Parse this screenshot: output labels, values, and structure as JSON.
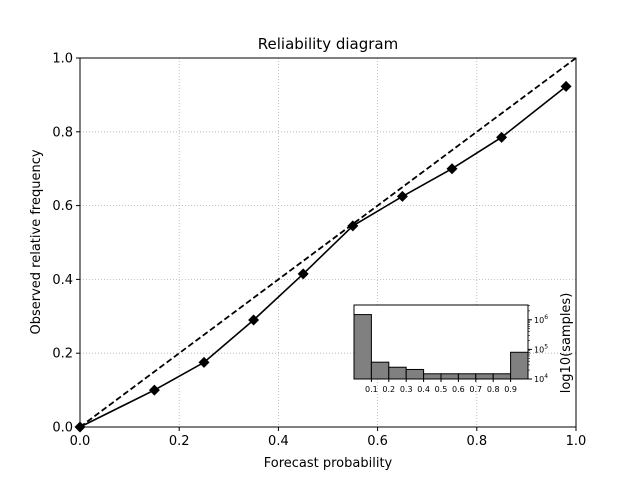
{
  "chart_data": [
    {
      "type": "line",
      "title": "Reliability diagram",
      "xlabel": "Forecast probability",
      "ylabel": "Observed relative frequency",
      "xlim": [
        0,
        1
      ],
      "ylim": [
        0,
        1
      ],
      "x_ticks": [
        "0.0",
        "0.2",
        "0.4",
        "0.6",
        "0.8",
        "1.0"
      ],
      "y_ticks": [
        "0.0",
        "0.2",
        "0.4",
        "0.6",
        "0.8",
        "1.0"
      ],
      "grid": true,
      "series": [
        {
          "x": [
            0.0,
            0.15,
            0.25,
            0.35,
            0.45,
            0.55,
            0.65,
            0.75,
            0.85,
            0.98
          ],
          "y": [
            0.0,
            0.1,
            0.175,
            0.29,
            0.415,
            0.545,
            0.625,
            0.7,
            0.785,
            0.923
          ],
          "marker": "diamond",
          "color": "#000000"
        }
      ],
      "reference_line": {
        "x": [
          0,
          1
        ],
        "y": [
          0,
          1
        ],
        "style": "dashed",
        "color": "#000000"
      }
    },
    {
      "type": "bar",
      "ylabel": "log10(samples)",
      "yscale": "log",
      "ylim_exponent": [
        4,
        6.5
      ],
      "y_ticks": [
        {
          "base": "10",
          "exp": "4",
          "value": 10000
        },
        {
          "base": "10",
          "exp": "5",
          "value": 100000
        },
        {
          "base": "10",
          "exp": "6",
          "value": 1000000
        }
      ],
      "x_ticks": [
        "0.1",
        "0.2",
        "0.3",
        "0.4",
        "0.5",
        "0.6",
        "0.7",
        "0.8",
        "0.9"
      ],
      "bin_edges": [
        0.0,
        0.1,
        0.2,
        0.3,
        0.4,
        0.5,
        0.6,
        0.7,
        0.8,
        0.9,
        1.0
      ],
      "values": [
        1500000,
        37000,
        25000,
        21000,
        15000,
        15000,
        15000,
        15000,
        15000,
        80000
      ],
      "bar_color": "#808080"
    }
  ]
}
